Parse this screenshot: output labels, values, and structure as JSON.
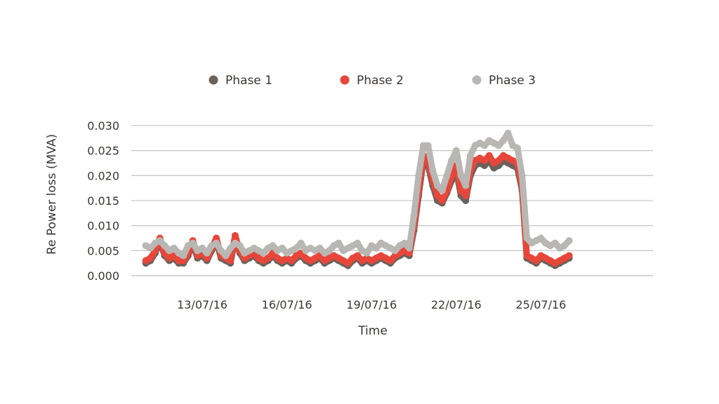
{
  "chart_data": {
    "type": "scatter",
    "title": "",
    "xlabel": "Time",
    "ylabel": "Re Power loss (MVA)",
    "ylim": [
      0,
      0.03
    ],
    "yticks": [
      "0.000",
      "0.005",
      "0.010",
      "0.015",
      "0.020",
      "0.025",
      "0.030"
    ],
    "xticks": [
      "13/07/16",
      "16/07/16",
      "19/07/16",
      "22/07/16",
      "25/07/16"
    ],
    "grid": true,
    "legend_position": "top",
    "x": [
      "11/07/16 00:00",
      "11/07/16 04:00",
      "11/07/16 08:00",
      "11/07/16 12:00",
      "11/07/16 16:00",
      "11/07/16 20:00",
      "12/07/16 00:00",
      "12/07/16 04:00",
      "12/07/16 08:00",
      "12/07/16 12:00",
      "12/07/16 16:00",
      "12/07/16 20:00",
      "13/07/16 00:00",
      "13/07/16 04:00",
      "13/07/16 08:00",
      "13/07/16 12:00",
      "13/07/16 16:00",
      "13/07/16 20:00",
      "14/07/16 00:00",
      "14/07/16 04:00",
      "14/07/16 08:00",
      "14/07/16 12:00",
      "14/07/16 16:00",
      "14/07/16 20:00",
      "15/07/16 00:00",
      "15/07/16 04:00",
      "15/07/16 08:00",
      "15/07/16 12:00",
      "15/07/16 16:00",
      "15/07/16 20:00",
      "16/07/16 00:00",
      "16/07/16 04:00",
      "16/07/16 08:00",
      "16/07/16 12:00",
      "16/07/16 16:00",
      "16/07/16 20:00",
      "17/07/16 00:00",
      "17/07/16 04:00",
      "17/07/16 08:00",
      "17/07/16 12:00",
      "17/07/16 16:00",
      "17/07/16 20:00",
      "18/07/16 00:00",
      "18/07/16 04:00",
      "18/07/16 08:00",
      "18/07/16 12:00",
      "18/07/16 16:00",
      "18/07/16 20:00",
      "19/07/16 00:00",
      "19/07/16 04:00",
      "19/07/16 08:00",
      "19/07/16 12:00",
      "19/07/16 16:00",
      "19/07/16 20:00",
      "20/07/16 00:00",
      "20/07/16 04:00",
      "20/07/16 08:00",
      "20/07/16 12:00",
      "20/07/16 16:00",
      "20/07/16 20:00",
      "21/07/16 00:00",
      "21/07/16 04:00",
      "21/07/16 08:00",
      "21/07/16 12:00",
      "21/07/16 16:00",
      "21/07/16 20:00",
      "22/07/16 00:00",
      "22/07/16 04:00",
      "22/07/16 08:00",
      "22/07/16 12:00",
      "22/07/16 16:00",
      "22/07/16 20:00",
      "23/07/16 00:00",
      "23/07/16 04:00",
      "23/07/16 08:00",
      "23/07/16 12:00",
      "23/07/16 16:00",
      "23/07/16 20:00",
      "24/07/16 00:00",
      "24/07/16 04:00",
      "24/07/16 08:00",
      "24/07/16 12:00",
      "24/07/16 16:00",
      "24/07/16 20:00",
      "25/07/16 00:00",
      "25/07/16 04:00",
      "25/07/16 08:00",
      "25/07/16 12:00",
      "25/07/16 16:00",
      "25/07/16 20:00",
      "26/07/16 00:00"
    ],
    "series": [
      {
        "name": "Phase 1",
        "color": "#6b625c",
        "values": [
          0.0025,
          0.003,
          0.0045,
          0.007,
          0.004,
          0.003,
          0.0035,
          0.0025,
          0.0025,
          0.004,
          0.0065,
          0.0035,
          0.004,
          0.003,
          0.005,
          0.007,
          0.0035,
          0.003,
          0.0025,
          0.0075,
          0.0045,
          0.003,
          0.0035,
          0.004,
          0.003,
          0.0025,
          0.003,
          0.004,
          0.003,
          0.0025,
          0.003,
          0.0025,
          0.0035,
          0.004,
          0.003,
          0.0025,
          0.003,
          0.0035,
          0.0025,
          0.003,
          0.0035,
          0.003,
          0.0025,
          0.002,
          0.003,
          0.0035,
          0.0025,
          0.003,
          0.0025,
          0.003,
          0.0035,
          0.003,
          0.0025,
          0.0035,
          0.004,
          0.0045,
          0.004,
          0.009,
          0.016,
          0.023,
          0.022,
          0.018,
          0.015,
          0.0145,
          0.0165,
          0.019,
          0.021,
          0.016,
          0.015,
          0.02,
          0.022,
          0.0225,
          0.022,
          0.023,
          0.0215,
          0.022,
          0.023,
          0.0225,
          0.022,
          0.0215,
          0.017,
          0.0035,
          0.003,
          0.0025,
          0.0035,
          0.003,
          0.0025,
          0.002,
          0.0025,
          0.003,
          0.0035
        ]
      },
      {
        "name": "Phase 2",
        "color": "#e8463a",
        "values": [
          0.003,
          0.0035,
          0.005,
          0.0075,
          0.0045,
          0.0035,
          0.004,
          0.003,
          0.003,
          0.0045,
          0.007,
          0.004,
          0.0045,
          0.0035,
          0.0055,
          0.0075,
          0.004,
          0.0035,
          0.003,
          0.008,
          0.005,
          0.0035,
          0.004,
          0.0045,
          0.0035,
          0.003,
          0.0035,
          0.0045,
          0.0035,
          0.003,
          0.0035,
          0.003,
          0.004,
          0.0045,
          0.0035,
          0.003,
          0.0035,
          0.004,
          0.003,
          0.0035,
          0.004,
          0.0035,
          0.003,
          0.0025,
          0.0035,
          0.004,
          0.003,
          0.0035,
          0.003,
          0.0035,
          0.004,
          0.0035,
          0.003,
          0.004,
          0.0045,
          0.005,
          0.0045,
          0.01,
          0.017,
          0.024,
          0.023,
          0.019,
          0.016,
          0.015,
          0.017,
          0.02,
          0.022,
          0.017,
          0.016,
          0.021,
          0.023,
          0.0235,
          0.023,
          0.024,
          0.0225,
          0.023,
          0.024,
          0.0235,
          0.023,
          0.0225,
          0.018,
          0.004,
          0.0035,
          0.003,
          0.004,
          0.0035,
          0.003,
          0.0025,
          0.003,
          0.0035,
          0.004
        ]
      },
      {
        "name": "Phase 3",
        "color": "#b9b7b3",
        "values": [
          0.006,
          0.0055,
          0.0065,
          0.007,
          0.006,
          0.005,
          0.0055,
          0.0045,
          0.004,
          0.006,
          0.0065,
          0.005,
          0.0055,
          0.0045,
          0.006,
          0.0065,
          0.005,
          0.004,
          0.0055,
          0.0065,
          0.006,
          0.0045,
          0.005,
          0.0055,
          0.005,
          0.0045,
          0.0055,
          0.006,
          0.005,
          0.0055,
          0.0045,
          0.005,
          0.0055,
          0.0065,
          0.005,
          0.0055,
          0.005,
          0.0055,
          0.0045,
          0.005,
          0.006,
          0.0065,
          0.005,
          0.0055,
          0.006,
          0.0065,
          0.005,
          0.0045,
          0.006,
          0.0055,
          0.0065,
          0.006,
          0.0055,
          0.005,
          0.006,
          0.0065,
          0.0055,
          0.012,
          0.02,
          0.026,
          0.026,
          0.021,
          0.018,
          0.017,
          0.02,
          0.023,
          0.025,
          0.02,
          0.018,
          0.024,
          0.026,
          0.0265,
          0.026,
          0.027,
          0.0265,
          0.026,
          0.027,
          0.0285,
          0.026,
          0.0255,
          0.02,
          0.0075,
          0.0065,
          0.007,
          0.0075,
          0.0065,
          0.006,
          0.0065,
          0.0055,
          0.006,
          0.007
        ]
      }
    ]
  }
}
